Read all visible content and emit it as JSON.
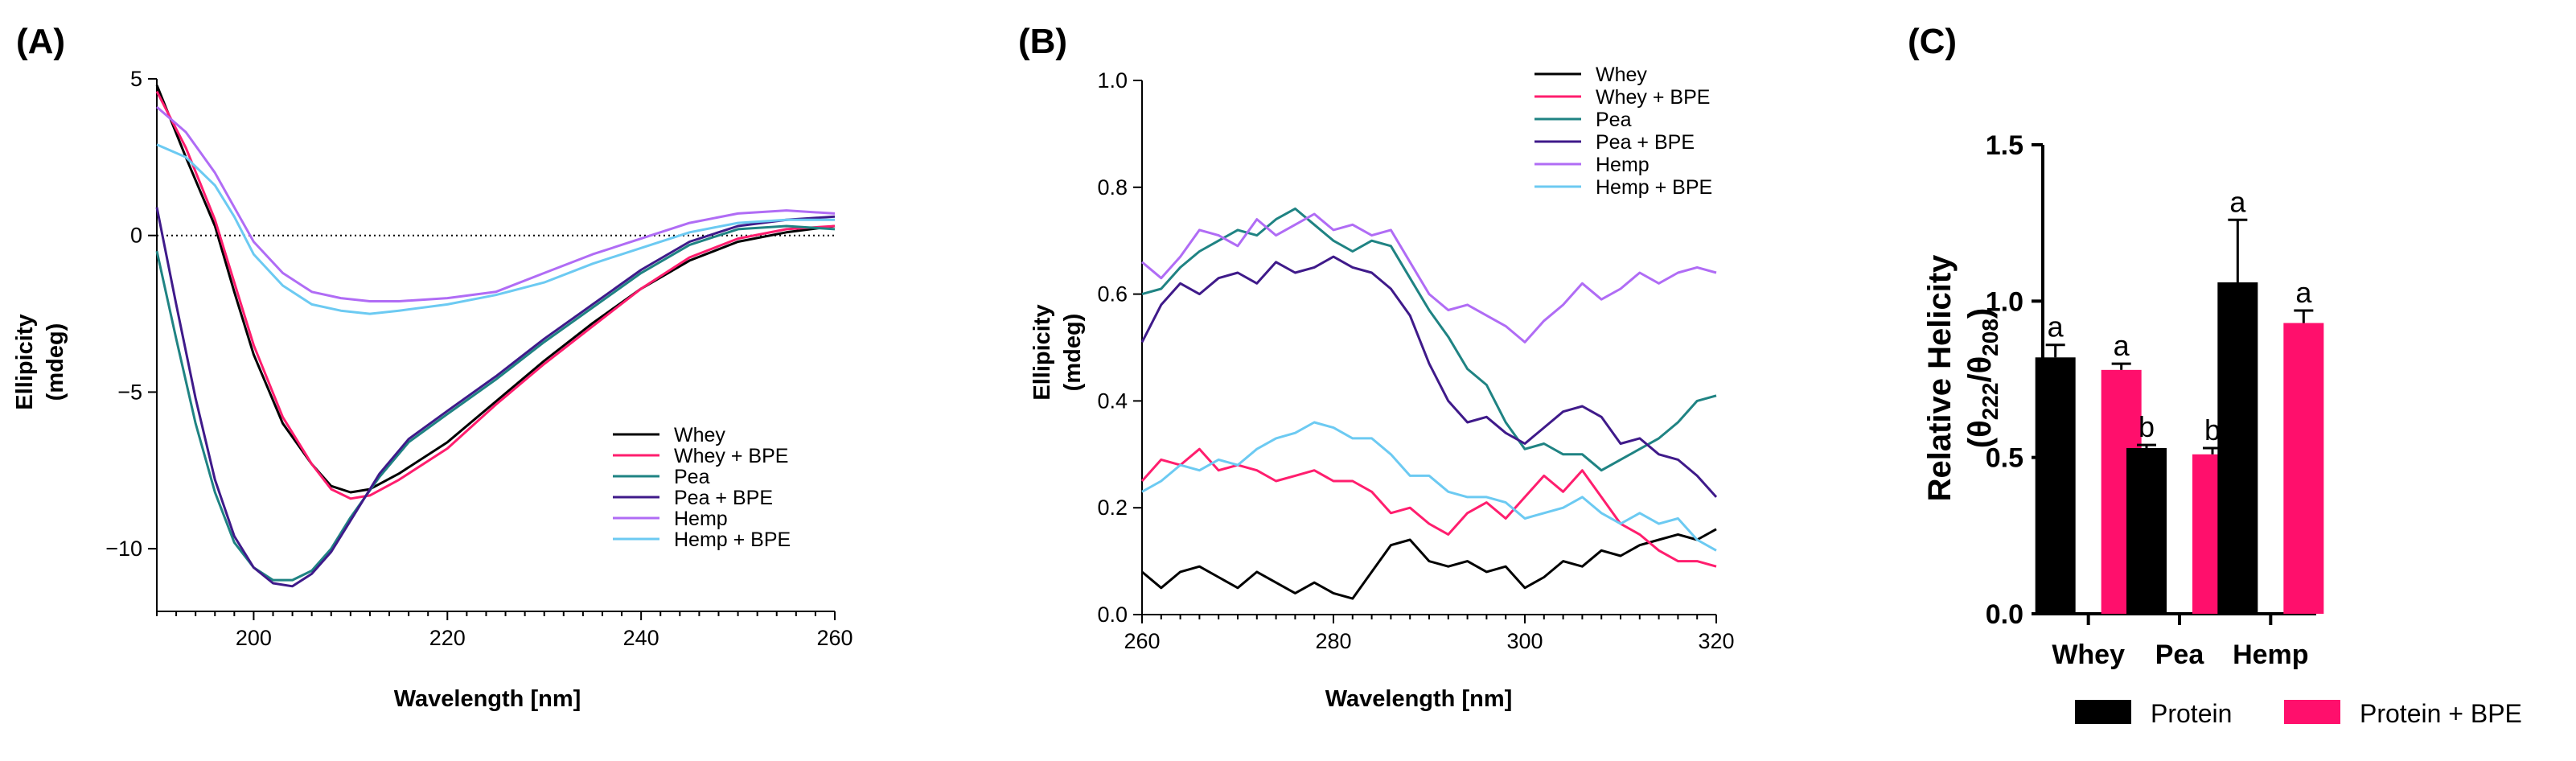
{
  "chart_data": [
    {
      "panel_label": "(A)",
      "type": "line",
      "xlabel": "Wavelength [nm]",
      "ylabel": [
        "Ellipicity",
        "(mdeg)"
      ],
      "xlim": [
        190,
        260
      ],
      "ylim": [
        -12,
        5
      ],
      "xticks": [
        200,
        220,
        240,
        260
      ],
      "yticks": [
        -10,
        -5,
        0,
        5
      ],
      "zero_line": true,
      "legend_position": "bottom-right",
      "series": [
        {
          "name": "Whey",
          "color": "#000000",
          "x": [
            190,
            193,
            196,
            198,
            200,
            203,
            206,
            208,
            210,
            212,
            215,
            220,
            225,
            230,
            235,
            240,
            245,
            250,
            255,
            260
          ],
          "y": [
            4.8,
            2.5,
            0.3,
            -1.8,
            -3.8,
            -6.0,
            -7.3,
            -8.0,
            -8.2,
            -8.1,
            -7.6,
            -6.6,
            -5.3,
            -4.0,
            -2.8,
            -1.7,
            -0.8,
            -0.2,
            0.1,
            0.3
          ]
        },
        {
          "name": "Whey + BPE",
          "color": "#ff1e6e",
          "x": [
            190,
            193,
            196,
            198,
            200,
            203,
            206,
            208,
            210,
            212,
            215,
            220,
            225,
            230,
            235,
            240,
            245,
            250,
            255,
            260
          ],
          "y": [
            4.6,
            2.8,
            0.5,
            -1.5,
            -3.5,
            -5.8,
            -7.3,
            -8.1,
            -8.4,
            -8.3,
            -7.8,
            -6.8,
            -5.4,
            -4.1,
            -2.9,
            -1.7,
            -0.7,
            -0.1,
            0.2,
            0.3
          ]
        },
        {
          "name": "Pea",
          "color": "#1f8383",
          "x": [
            190,
            192,
            194,
            196,
            198,
            200,
            202,
            204,
            206,
            208,
            210,
            213,
            216,
            220,
            225,
            230,
            235,
            240,
            245,
            250,
            255,
            260
          ],
          "y": [
            -0.5,
            -3.3,
            -6.0,
            -8.2,
            -9.8,
            -10.6,
            -11.0,
            -11.0,
            -10.7,
            -10.0,
            -9.0,
            -7.7,
            -6.6,
            -5.7,
            -4.6,
            -3.4,
            -2.3,
            -1.2,
            -0.3,
            0.2,
            0.3,
            0.2
          ]
        },
        {
          "name": "Pea + BPE",
          "color": "#3f1a8a",
          "x": [
            190,
            192,
            194,
            196,
            198,
            200,
            202,
            204,
            206,
            208,
            210,
            213,
            216,
            220,
            225,
            230,
            235,
            240,
            245,
            250,
            255,
            260
          ],
          "y": [
            0.9,
            -2.2,
            -5.2,
            -7.8,
            -9.6,
            -10.6,
            -11.1,
            -11.2,
            -10.8,
            -10.1,
            -9.1,
            -7.6,
            -6.5,
            -5.6,
            -4.5,
            -3.3,
            -2.2,
            -1.1,
            -0.2,
            0.3,
            0.5,
            0.6
          ]
        },
        {
          "name": "Hemp",
          "color": "#b06cf5",
          "x": [
            190,
            193,
            196,
            198,
            200,
            203,
            206,
            209,
            212,
            215,
            220,
            225,
            230,
            235,
            240,
            245,
            250,
            255,
            260
          ],
          "y": [
            4.1,
            3.3,
            2.0,
            0.9,
            -0.2,
            -1.2,
            -1.8,
            -2.0,
            -2.1,
            -2.1,
            -2.0,
            -1.8,
            -1.2,
            -0.6,
            -0.1,
            0.4,
            0.7,
            0.8,
            0.7
          ]
        },
        {
          "name": "Hemp + BPE",
          "color": "#6ccaf2",
          "x": [
            190,
            193,
            196,
            198,
            200,
            203,
            206,
            209,
            212,
            215,
            220,
            225,
            230,
            235,
            240,
            245,
            250,
            255,
            260
          ],
          "y": [
            2.9,
            2.5,
            1.6,
            0.6,
            -0.6,
            -1.6,
            -2.2,
            -2.4,
            -2.5,
            -2.4,
            -2.2,
            -1.9,
            -1.5,
            -0.9,
            -0.4,
            0.1,
            0.4,
            0.5,
            0.5
          ]
        }
      ]
    },
    {
      "panel_label": "(B)",
      "type": "line",
      "xlabel": "Wavelength [nm]",
      "ylabel": [
        "Ellipicity",
        "(mdeg)"
      ],
      "xlim": [
        260,
        320
      ],
      "ylim": [
        0,
        1.0
      ],
      "xticks": [
        260,
        280,
        300,
        320
      ],
      "yticks": [
        0.0,
        0.2,
        0.4,
        0.6,
        0.8,
        1.0
      ],
      "legend_position": "top-right",
      "series": [
        {
          "name": "Whey",
          "color": "#000000",
          "x": [
            260,
            262,
            264,
            266,
            268,
            270,
            272,
            274,
            276,
            278,
            280,
            282,
            284,
            286,
            288,
            290,
            292,
            294,
            296,
            298,
            300,
            302,
            304,
            306,
            308,
            310,
            312,
            314,
            316,
            318,
            320
          ],
          "y": [
            0.08,
            0.05,
            0.08,
            0.09,
            0.07,
            0.05,
            0.08,
            0.06,
            0.04,
            0.06,
            0.04,
            0.03,
            0.08,
            0.13,
            0.14,
            0.1,
            0.09,
            0.1,
            0.08,
            0.09,
            0.05,
            0.07,
            0.1,
            0.09,
            0.12,
            0.11,
            0.13,
            0.14,
            0.15,
            0.14,
            0.16
          ]
        },
        {
          "name": "Whey + BPE",
          "color": "#ff1e6e",
          "x": [
            260,
            262,
            264,
            266,
            268,
            270,
            272,
            274,
            276,
            278,
            280,
            282,
            284,
            286,
            288,
            290,
            292,
            294,
            296,
            298,
            300,
            302,
            304,
            306,
            308,
            310,
            312,
            314,
            316,
            318,
            320
          ],
          "y": [
            0.25,
            0.29,
            0.28,
            0.31,
            0.27,
            0.28,
            0.27,
            0.25,
            0.26,
            0.27,
            0.25,
            0.25,
            0.23,
            0.19,
            0.2,
            0.17,
            0.15,
            0.19,
            0.21,
            0.18,
            0.22,
            0.26,
            0.23,
            0.27,
            0.22,
            0.17,
            0.15,
            0.12,
            0.1,
            0.1,
            0.09
          ]
        },
        {
          "name": "Pea",
          "color": "#1f8383",
          "x": [
            260,
            262,
            264,
            266,
            268,
            270,
            272,
            274,
            276,
            278,
            280,
            282,
            284,
            286,
            288,
            290,
            292,
            294,
            296,
            298,
            300,
            302,
            304,
            306,
            308,
            310,
            312,
            314,
            316,
            318,
            320
          ],
          "y": [
            0.6,
            0.61,
            0.65,
            0.68,
            0.7,
            0.72,
            0.71,
            0.74,
            0.76,
            0.73,
            0.7,
            0.68,
            0.7,
            0.69,
            0.63,
            0.57,
            0.52,
            0.46,
            0.43,
            0.36,
            0.31,
            0.32,
            0.3,
            0.3,
            0.27,
            0.29,
            0.31,
            0.33,
            0.36,
            0.4,
            0.41
          ]
        },
        {
          "name": "Pea + BPE",
          "color": "#3f1a8a",
          "x": [
            260,
            262,
            264,
            266,
            268,
            270,
            272,
            274,
            276,
            278,
            280,
            282,
            284,
            286,
            288,
            290,
            292,
            294,
            296,
            298,
            300,
            302,
            304,
            306,
            308,
            310,
            312,
            314,
            316,
            318,
            320
          ],
          "y": [
            0.51,
            0.58,
            0.62,
            0.6,
            0.63,
            0.64,
            0.62,
            0.66,
            0.64,
            0.65,
            0.67,
            0.65,
            0.64,
            0.61,
            0.56,
            0.47,
            0.4,
            0.36,
            0.37,
            0.34,
            0.32,
            0.35,
            0.38,
            0.39,
            0.37,
            0.32,
            0.33,
            0.3,
            0.29,
            0.26,
            0.22
          ]
        },
        {
          "name": "Hemp",
          "color": "#b06cf5",
          "x": [
            260,
            262,
            264,
            266,
            268,
            270,
            272,
            274,
            276,
            278,
            280,
            282,
            284,
            286,
            288,
            290,
            292,
            294,
            296,
            298,
            300,
            302,
            304,
            306,
            308,
            310,
            312,
            314,
            316,
            318,
            320
          ],
          "y": [
            0.66,
            0.63,
            0.67,
            0.72,
            0.71,
            0.69,
            0.74,
            0.71,
            0.73,
            0.75,
            0.72,
            0.73,
            0.71,
            0.72,
            0.66,
            0.6,
            0.57,
            0.58,
            0.56,
            0.54,
            0.51,
            0.55,
            0.58,
            0.62,
            0.59,
            0.61,
            0.64,
            0.62,
            0.64,
            0.65,
            0.64
          ]
        },
        {
          "name": "Hemp + BPE",
          "color": "#6ccaf2",
          "x": [
            260,
            262,
            264,
            266,
            268,
            270,
            272,
            274,
            276,
            278,
            280,
            282,
            284,
            286,
            288,
            290,
            292,
            294,
            296,
            298,
            300,
            302,
            304,
            306,
            308,
            310,
            312,
            314,
            316,
            318,
            320
          ],
          "y": [
            0.23,
            0.25,
            0.28,
            0.27,
            0.29,
            0.28,
            0.31,
            0.33,
            0.34,
            0.36,
            0.35,
            0.33,
            0.33,
            0.3,
            0.26,
            0.26,
            0.23,
            0.22,
            0.22,
            0.21,
            0.18,
            0.19,
            0.2,
            0.22,
            0.19,
            0.17,
            0.19,
            0.17,
            0.18,
            0.14,
            0.12
          ]
        }
      ]
    },
    {
      "panel_label": "(C)",
      "type": "bar",
      "ylabel": "Relative Helicity",
      "ylabel_sub": "(θ222/θ208)",
      "ylim": [
        0,
        1.5
      ],
      "yticks": [
        0.0,
        0.5,
        1.0,
        1.5
      ],
      "categories": [
        "Whey",
        "Pea",
        "Hemp"
      ],
      "legend_position": "bottom",
      "series": [
        {
          "name": "Protein",
          "color": "#000000",
          "values": [
            0.82,
            0.53,
            1.06
          ],
          "errors": [
            0.04,
            0.01,
            0.2
          ],
          "letters": [
            "a",
            "b",
            "a"
          ]
        },
        {
          "name": "Protein + BPE",
          "color": "#ff0f6c",
          "values": [
            0.78,
            0.51,
            0.93
          ],
          "errors": [
            0.02,
            0.02,
            0.04
          ],
          "letters": [
            "a",
            "b",
            "a"
          ]
        }
      ]
    }
  ]
}
